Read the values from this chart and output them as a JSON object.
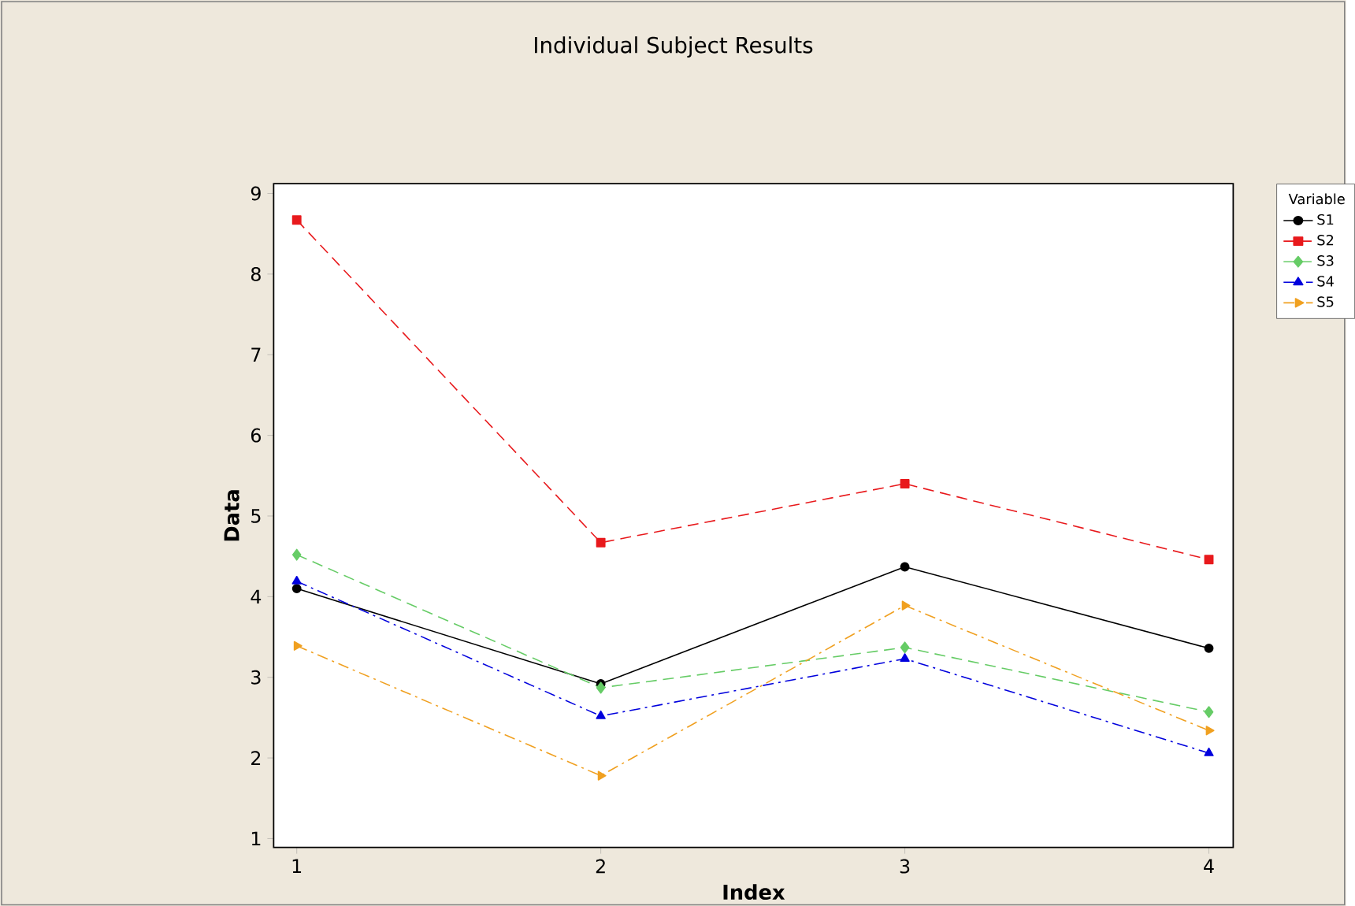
{
  "chart_data": {
    "type": "line",
    "title": "Individual Subject Results",
    "xlabel": "Index",
    "ylabel": "Data",
    "legend_title": "Variable",
    "legend": "right",
    "x": [
      1,
      2,
      3,
      4
    ],
    "xlim": [
      0.924,
      4.08
    ],
    "xticks": [
      1,
      2,
      3,
      4
    ],
    "ylim": [
      0.89,
      9.12
    ],
    "yticks": [
      1,
      2,
      3,
      4,
      5,
      6,
      7,
      8,
      9
    ],
    "series": [
      {
        "name": "S1",
        "color": "#000000",
        "marker": "circle",
        "line_style": "solid",
        "values": [
          4.1,
          2.92,
          4.37,
          3.36
        ]
      },
      {
        "name": "S2",
        "color": "#e8191c",
        "marker": "square",
        "line_style": "dashed",
        "values": [
          8.67,
          4.67,
          5.4,
          4.46
        ]
      },
      {
        "name": "S3",
        "color": "#66cc66",
        "marker": "diamond",
        "line_style": "dashed",
        "values": [
          4.52,
          2.87,
          3.37,
          2.57
        ]
      },
      {
        "name": "S4",
        "color": "#0000dd",
        "marker": "triangle",
        "line_style": "dashdot",
        "values": [
          4.19,
          2.52,
          3.23,
          2.06
        ]
      },
      {
        "name": "S5",
        "color": "#f0a020",
        "marker": "triangle-right",
        "line_style": "dashdot",
        "values": [
          3.39,
          1.78,
          3.89,
          2.34
        ]
      }
    ]
  }
}
